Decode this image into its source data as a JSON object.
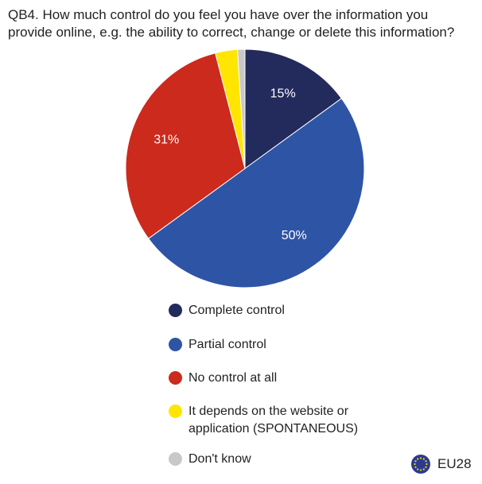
{
  "chart_data": {
    "type": "pie",
    "title": "QB4. How much control do you feel you have over the information you provide online, e.g. the ability to correct, change or delete this information?",
    "categories": [
      "Complete control",
      "Partial control",
      "No control at all",
      "It depends on the website or application (SPONTANEOUS)",
      "Don't know"
    ],
    "values": [
      15,
      50,
      31,
      3,
      1
    ],
    "value_labels": [
      "15%",
      "50%",
      "31%",
      null,
      null
    ],
    "colors": [
      "#232a5c",
      "#2e54a5",
      "#cc2a1d",
      "#ffe500",
      "#c8c8c8"
    ],
    "legend": "bottom",
    "region": "EU28"
  }
}
